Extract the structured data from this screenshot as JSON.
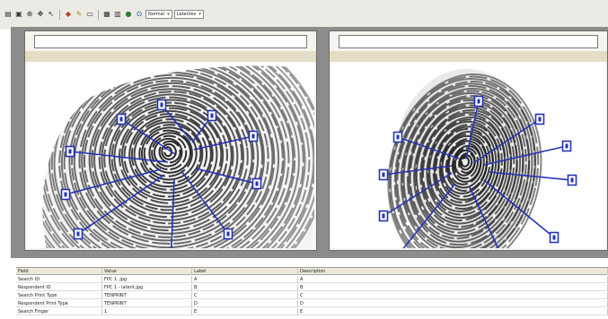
{
  "toolbar": {
    "buttons": [
      {
        "name": "open-file-icon",
        "glyph": "▤"
      },
      {
        "name": "save-icon",
        "glyph": "▣"
      },
      {
        "name": "zoom-in-icon",
        "glyph": "⊕"
      },
      {
        "name": "pan-icon",
        "glyph": "✥"
      },
      {
        "name": "select-icon",
        "glyph": "↖"
      },
      {
        "name": "marker-icon",
        "glyph": "◆"
      },
      {
        "name": "pen-icon",
        "glyph": "✎"
      },
      {
        "name": "ruler-icon",
        "glyph": "▭"
      },
      {
        "name": "grid-icon",
        "glyph": "▦"
      },
      {
        "name": "table-icon",
        "glyph": "▥"
      },
      {
        "name": "color-icon",
        "glyph": "●"
      },
      {
        "name": "help-icon",
        "glyph": "⊙"
      }
    ],
    "selects": [
      {
        "name": "zoom-select",
        "value": "Normal"
      },
      {
        "name": "overlay-select",
        "value": "Latentes"
      }
    ]
  },
  "colors": {
    "marker": "#2433b8",
    "band": "#e3ddc6",
    "workarea": "#8c8c8c"
  },
  "grid": {
    "headers": {
      "field": "Field",
      "value": "Value",
      "label": "Label",
      "description": "Description"
    },
    "rows": [
      {
        "field": "Search ID",
        "value": "FPC 1 .jpg",
        "label": "A",
        "description": "A"
      },
      {
        "field": "Respondent ID",
        "value": "FPC 1 - latent.jpg",
        "label": "B",
        "description": "B"
      },
      {
        "field": "Search Print Type",
        "value": "TENPRINT",
        "label": "C",
        "description": "C"
      },
      {
        "field": "Respondent Print Type",
        "value": "TENPRINT",
        "label": "D",
        "description": "D"
      },
      {
        "field": "Search Finger",
        "value": "1",
        "label": "E",
        "description": "E"
      }
    ]
  }
}
